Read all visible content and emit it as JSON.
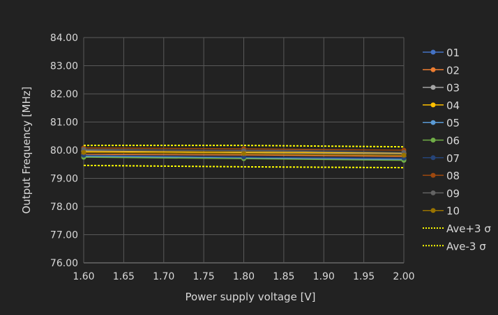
{
  "chart_data": {
    "type": "line",
    "xlabel": "Power supply voltage [V]",
    "ylabel": "Output Frequency [MHz]",
    "xlim": [
      1.6,
      2.0
    ],
    "ylim": [
      76,
      84
    ],
    "xticks": [
      "1.60",
      "1.65",
      "1.70",
      "1.75",
      "1.80",
      "1.85",
      "1.90",
      "1.95",
      "2.00"
    ],
    "yticks": [
      "76.00",
      "77.00",
      "78.00",
      "79.00",
      "80.00",
      "81.00",
      "82.00",
      "83.00",
      "84.00"
    ],
    "grid": true,
    "legend_position": "right",
    "x": [
      1.6,
      1.8,
      2.0
    ],
    "series": [
      {
        "name": "01",
        "color": "#4472c4",
        "marker": true,
        "values": [
          79.8,
          79.72,
          79.68
        ]
      },
      {
        "name": "02",
        "color": "#ed7d31",
        "marker": true,
        "values": [
          79.85,
          79.83,
          79.78
        ]
      },
      {
        "name": "03",
        "color": "#a5a5a5",
        "marker": true,
        "values": [
          79.97,
          79.92,
          79.88
        ]
      },
      {
        "name": "04",
        "color": "#ffc000",
        "marker": true,
        "values": [
          79.95,
          79.93,
          79.9
        ]
      },
      {
        "name": "05",
        "color": "#5b9bd5",
        "marker": true,
        "values": [
          79.78,
          79.72,
          79.66
        ]
      },
      {
        "name": "06",
        "color": "#70ad47",
        "marker": true,
        "values": [
          79.75,
          79.7,
          79.64
        ]
      },
      {
        "name": "07",
        "color": "#264478",
        "marker": true,
        "values": [
          79.82,
          79.76,
          79.72
        ]
      },
      {
        "name": "08",
        "color": "#9e480e",
        "marker": true,
        "values": [
          80.08,
          80.05,
          80.0
        ]
      },
      {
        "name": "09",
        "color": "#636363",
        "marker": true,
        "values": [
          80.03,
          79.98,
          79.92
        ]
      },
      {
        "name": "10",
        "color": "#997300",
        "marker": true,
        "values": [
          79.92,
          79.88,
          79.82
        ]
      },
      {
        "name": "Ave+3 σ",
        "color": "#ffff00",
        "marker": false,
        "dashed": true,
        "values": [
          80.17,
          80.17,
          80.12
        ]
      },
      {
        "name": "Ave-3 σ",
        "color": "#ffff00",
        "marker": false,
        "dashed": true,
        "values": [
          79.46,
          79.41,
          79.38
        ]
      }
    ]
  }
}
